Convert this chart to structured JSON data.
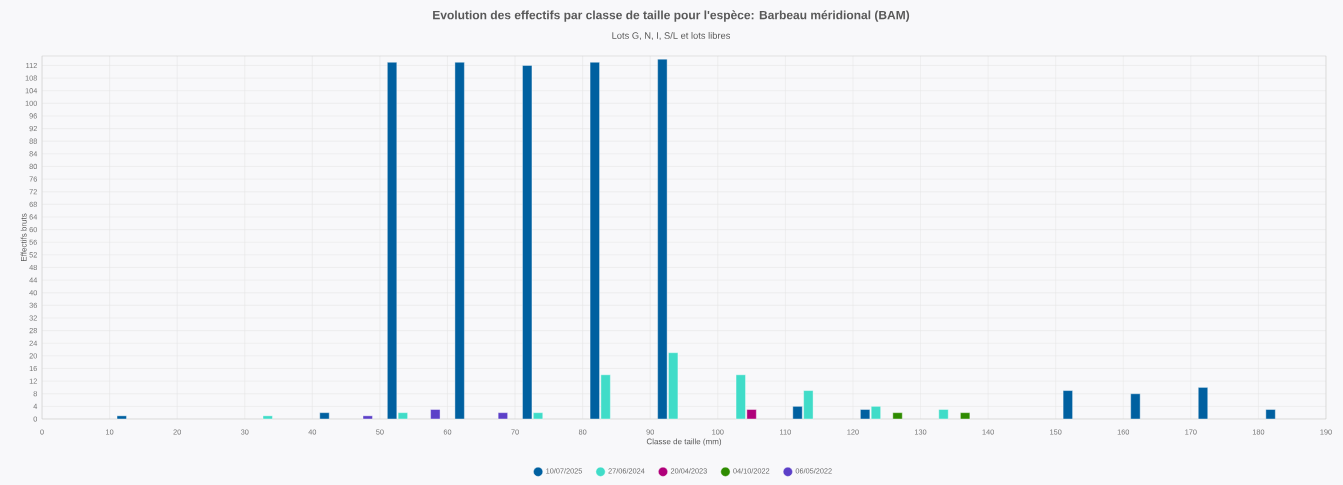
{
  "chart_data": {
    "type": "bar",
    "title": "Evolution des effectifs par classe de taille pour l'espèce: Barbeau méridional (BAM)",
    "subtitle": "Lots G, N, I, S/L et lots libres",
    "xlabel": "Classe de taille (mm)",
    "ylabel": "Effectifs bruts",
    "xlim": [
      0,
      190
    ],
    "xticks": [
      0,
      10,
      20,
      30,
      40,
      50,
      60,
      70,
      80,
      90,
      100,
      110,
      120,
      130,
      140,
      150,
      160,
      170,
      180,
      190
    ],
    "ylim": [
      0,
      115
    ],
    "yticks": [
      0,
      4,
      8,
      12,
      16,
      20,
      24,
      28,
      32,
      36,
      40,
      44,
      48,
      52,
      56,
      60,
      64,
      68,
      72,
      76,
      80,
      84,
      88,
      92,
      96,
      100,
      104,
      108,
      112
    ],
    "grid": true,
    "legend": "bottom",
    "series": [
      {
        "name": "10/07/2025",
        "color": "#0060a0",
        "x": [
          11.8,
          41.8,
          51.8,
          61.8,
          71.8,
          81.8,
          91.8,
          111.8,
          121.8,
          151.8,
          161.8,
          171.8,
          181.8
        ],
        "values": [
          1,
          2,
          113,
          113,
          112,
          113,
          114,
          4,
          3,
          9,
          8,
          10,
          3
        ]
      },
      {
        "name": "27/06/2024",
        "color": "#40dcc8",
        "x": [
          33.4,
          53.4,
          73.4,
          83.4,
          93.4,
          103.4,
          113.4,
          123.4,
          133.4
        ],
        "values": [
          1,
          2,
          2,
          14,
          21,
          14,
          9,
          4,
          3
        ]
      },
      {
        "name": "20/04/2023",
        "color": "#b0007a",
        "x": [
          105
        ],
        "values": [
          3
        ]
      },
      {
        "name": "04/10/2022",
        "color": "#2e8b00",
        "x": [
          126.6,
          136.6
        ],
        "values": [
          2,
          2
        ]
      },
      {
        "name": "06/05/2022",
        "color": "#5c40c8",
        "x": [
          48.2,
          58.2,
          68.2
        ],
        "values": [
          1,
          3,
          2
        ]
      }
    ]
  }
}
